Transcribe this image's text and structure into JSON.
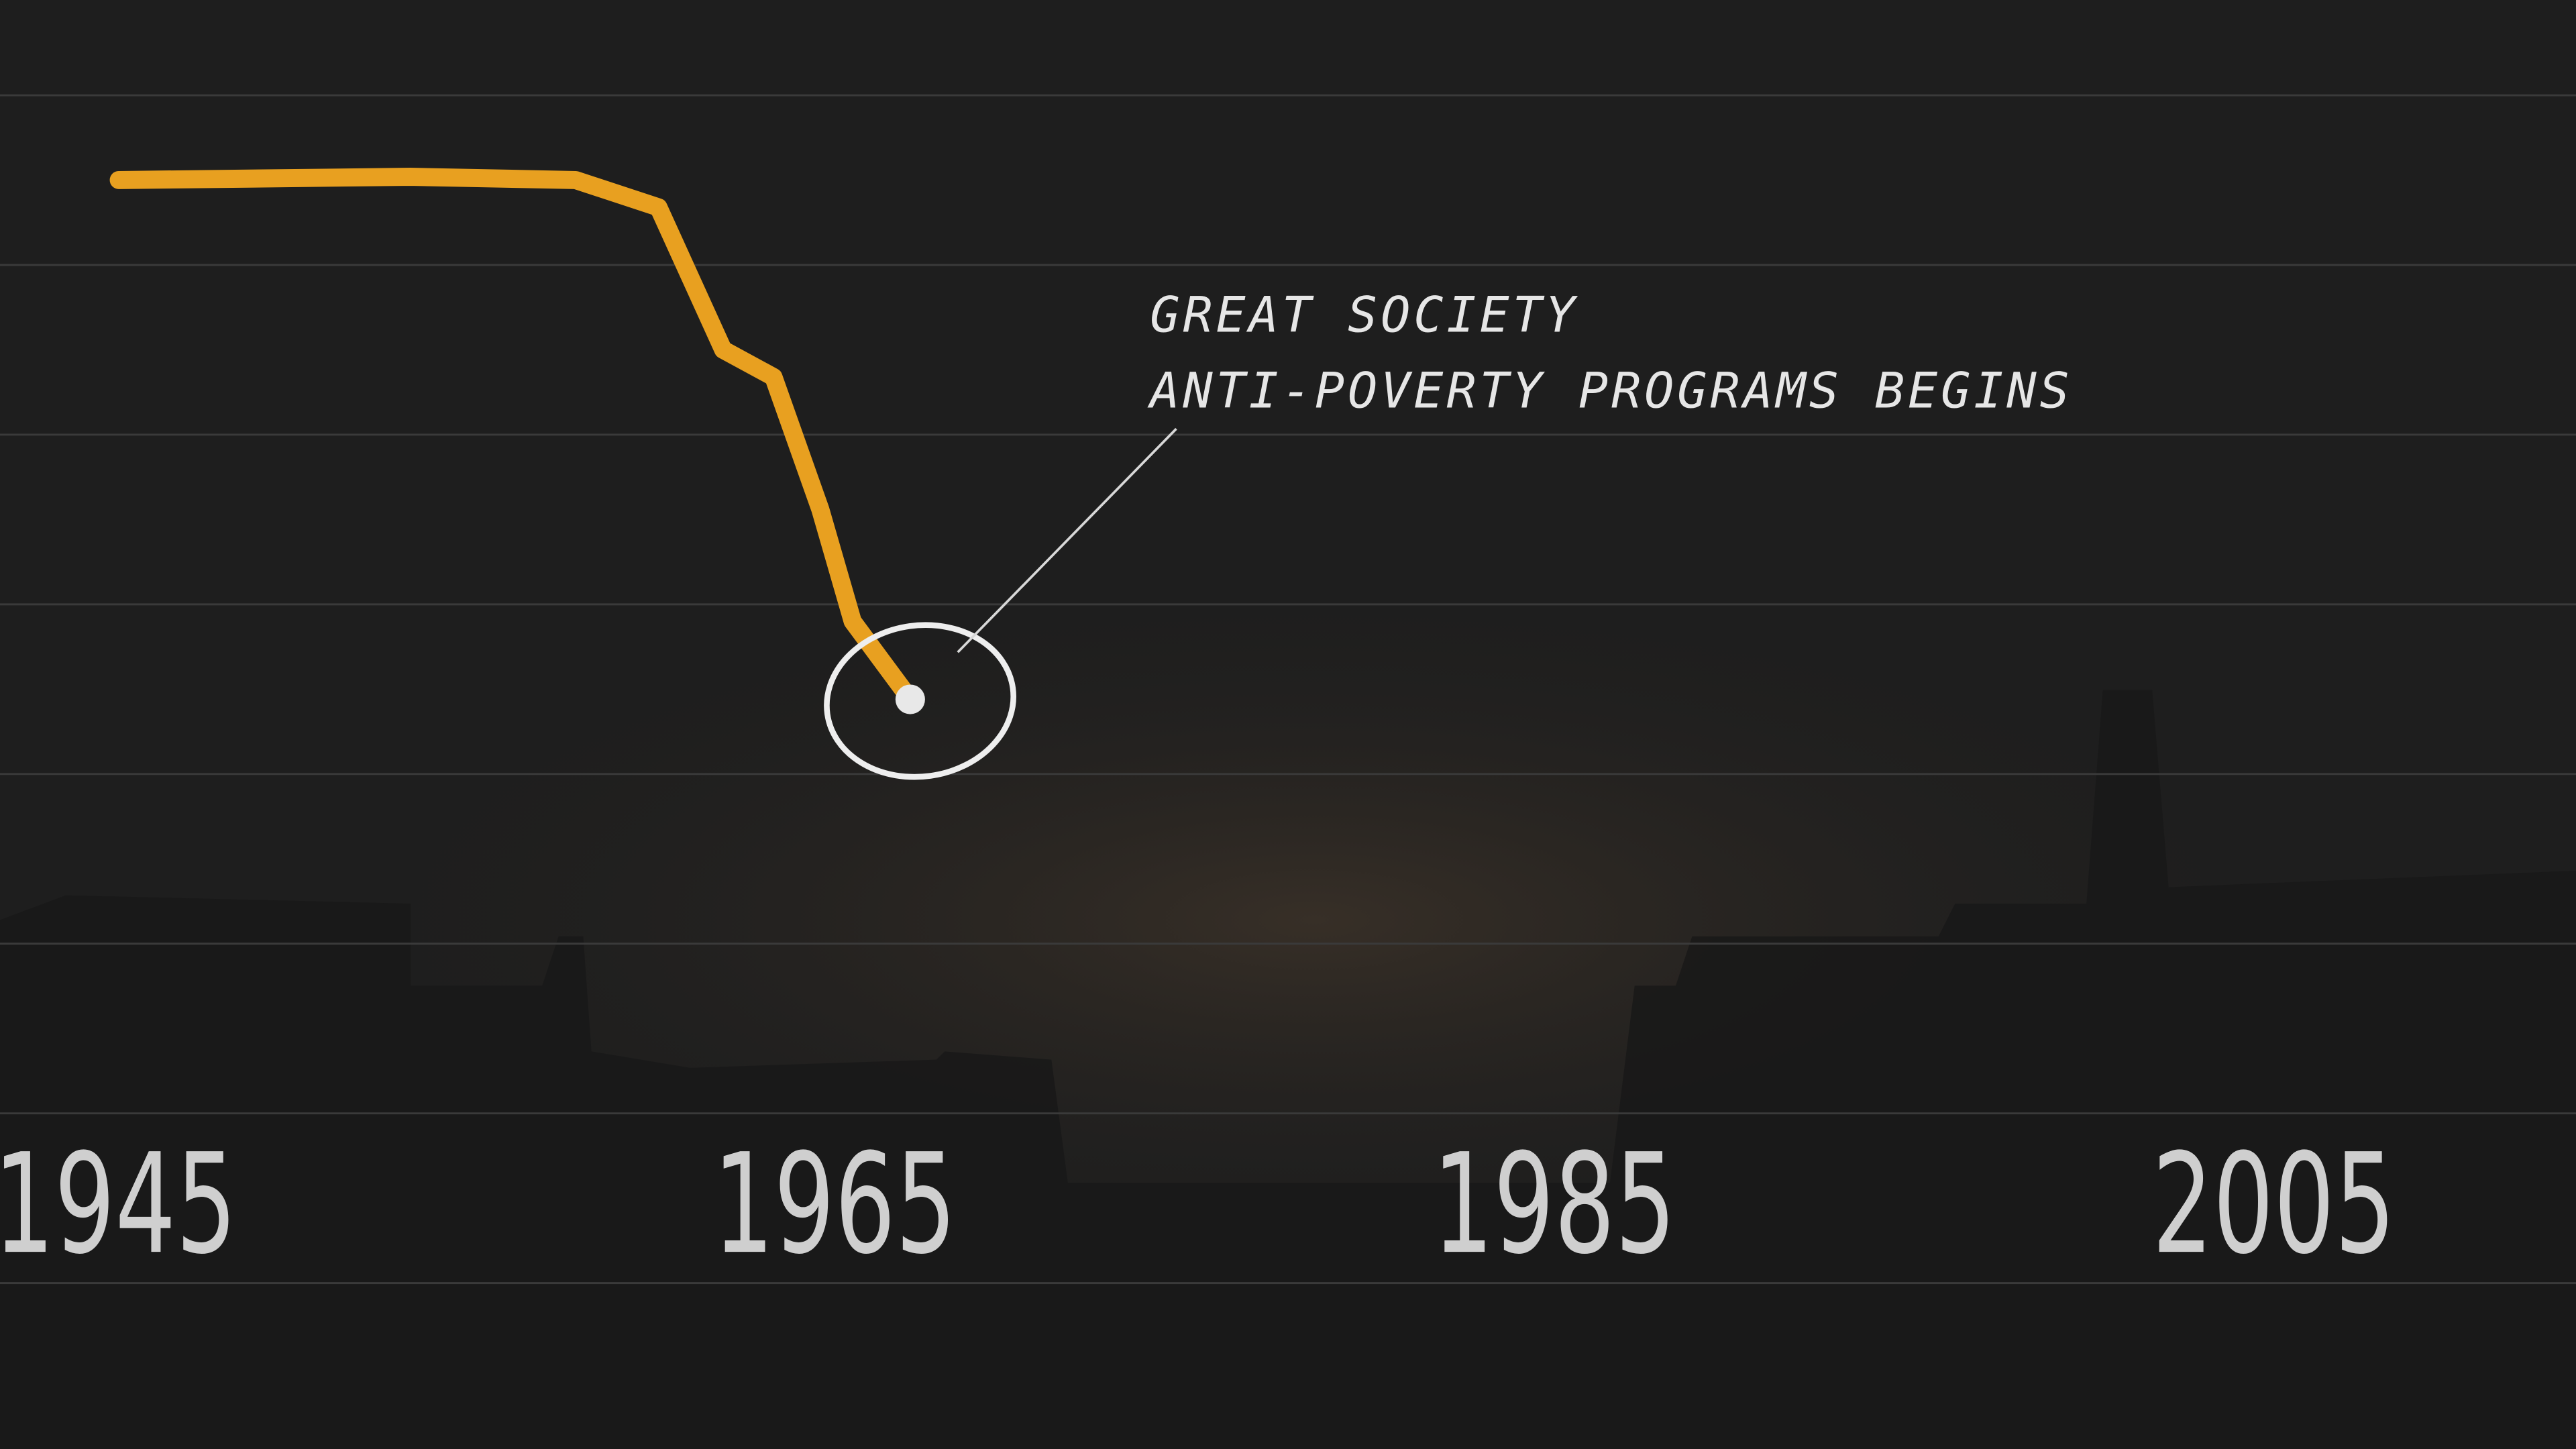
{
  "chart_data": {
    "type": "line",
    "x": [
      1945.1,
      1953.2,
      1957.8,
      1960.1,
      1961.9,
      1963.3,
      1964.6,
      1965.5,
      1967.1
    ],
    "series": [
      {
        "color": "#e8a020",
        "values": [
          32.5,
          32.6,
          32.5,
          31.7,
          27.5,
          26.7,
          22.8,
          19.5,
          17.2
        ]
      }
    ],
    "xlim": [
      1941.8,
      2013.4
    ],
    "xticks": [
      1945,
      1965,
      1985,
      2005
    ],
    "ylim": [
      0,
      35
    ],
    "annotation": [
      "GREAT SOCIETY",
      "ANTI-POVERTY PROGRAMS BEGINS"
    ]
  }
}
